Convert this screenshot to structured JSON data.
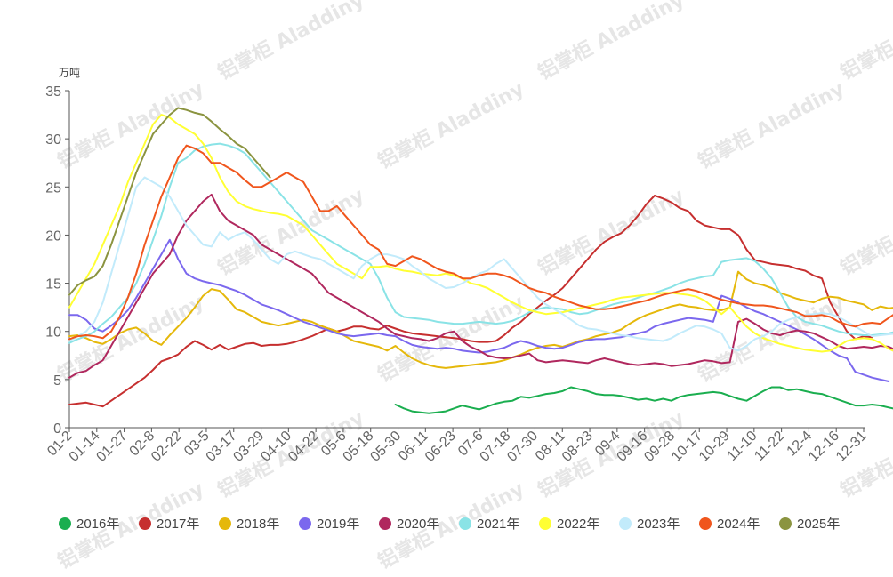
{
  "chart_data": {
    "type": "line",
    "ylabel": "万吨",
    "ylim": [
      0,
      35
    ],
    "yticks": [
      0,
      5,
      10,
      15,
      20,
      25,
      30,
      35
    ],
    "xtick_labels": [
      "01-2",
      "01-14",
      "01-27",
      "02-8",
      "02-22",
      "03-5",
      "03-17",
      "03-29",
      "04-10",
      "04-22",
      "05-6",
      "05-18",
      "05-30",
      "06-11",
      "06-23",
      "07-6",
      "07-18",
      "07-30",
      "08-11",
      "08-23",
      "09-4",
      "09-16",
      "09-28",
      "10-17",
      "10-29",
      "11-10",
      "11-22",
      "12-4",
      "12-16",
      "12-31"
    ],
    "x_count": 96,
    "legend_position": "bottom",
    "grid": false,
    "watermark": "铝掌柜 Aladdiny",
    "series": [
      {
        "name": "2016年",
        "color": "#1aae4f",
        "start": 39,
        "values": [
          2.4,
          2.0,
          1.7,
          1.6,
          1.5,
          1.6,
          1.7,
          2.0,
          2.3,
          2.1,
          1.9,
          2.2,
          2.5,
          2.7,
          2.8,
          3.2,
          3.1,
          3.3,
          3.5,
          3.6,
          3.8,
          4.2,
          4.0,
          3.8,
          3.5,
          3.4,
          3.4,
          3.3,
          3.1,
          2.9,
          3.0,
          2.8,
          3.0,
          2.8,
          3.2,
          3.4,
          3.5,
          3.6,
          3.7,
          3.6,
          3.3,
          3.0,
          2.8,
          3.3,
          3.8,
          4.2,
          4.2,
          3.9,
          4.0,
          3.8,
          3.6,
          3.5,
          3.2,
          2.9,
          2.6,
          2.3,
          2.3,
          2.4,
          2.3,
          2.1,
          1.9,
          1.8,
          1.7,
          1.6,
          1.5,
          1.3,
          1.2,
          1.1,
          1.1,
          1.3,
          1.6,
          1.8
        ]
      },
      {
        "name": "2017年",
        "color": "#c62f2f",
        "start": 0,
        "values": [
          2.4,
          2.5,
          2.6,
          2.4,
          2.2,
          2.8,
          3.4,
          4.0,
          4.6,
          5.2,
          6.0,
          6.9,
          7.2,
          7.6,
          8.4,
          9.0,
          8.6,
          8.1,
          8.6,
          8.1,
          8.4,
          8.7,
          8.8,
          8.5,
          8.6,
          8.6,
          8.7,
          8.9,
          9.2,
          9.5,
          9.9,
          10.3,
          10.0,
          10.2,
          10.5,
          10.5,
          10.3,
          10.2,
          10.6,
          10.3,
          10.0,
          9.8,
          9.7,
          9.6,
          9.5,
          9.4,
          9.3,
          9.2,
          9.0,
          8.9,
          8.9,
          9.0,
          9.6,
          10.4,
          11.0,
          11.8,
          12.5,
          13.2,
          13.8,
          14.5,
          15.5,
          16.5,
          17.5,
          18.5,
          19.3,
          19.8,
          20.2,
          21.0,
          22.0,
          23.2,
          24.1,
          23.8,
          23.4,
          22.8,
          22.5,
          21.5,
          21.0,
          20.8,
          20.6,
          20.6,
          20.0,
          18.5,
          17.4,
          17.2,
          17.0,
          16.9,
          16.8,
          16.5,
          16.3,
          15.8,
          15.5,
          13.0,
          11.5,
          10.0,
          9.2,
          9.5,
          9.4
        ]
      },
      {
        "name": "2018年",
        "color": "#e5b80b",
        "start": 0,
        "values": [
          9.5,
          9.6,
          9.3,
          8.9,
          8.7,
          9.2,
          9.8,
          10.2,
          10.4,
          9.8,
          9.0,
          8.6,
          9.6,
          10.5,
          11.4,
          12.5,
          13.7,
          14.4,
          14.2,
          13.3,
          12.3,
          12.0,
          11.5,
          11.0,
          10.8,
          10.6,
          10.8,
          11.0,
          11.2,
          11.0,
          10.6,
          10.3,
          10.0,
          9.5,
          9.0,
          8.8,
          8.6,
          8.4,
          8.0,
          8.5,
          7.8,
          7.2,
          6.8,
          6.5,
          6.3,
          6.2,
          6.3,
          6.4,
          6.5,
          6.6,
          6.7,
          6.8,
          7.0,
          7.3,
          7.6,
          8.0,
          8.3,
          8.5,
          8.6,
          8.4,
          8.7,
          9.0,
          9.2,
          9.5,
          9.7,
          9.9,
          10.2,
          10.8,
          11.3,
          11.7,
          12.0,
          12.3,
          12.6,
          12.8,
          12.6,
          12.5,
          12.3,
          12.2,
          12.2,
          12.5,
          16.2,
          15.4,
          15.0,
          14.8,
          14.5,
          14.0,
          13.7,
          13.4,
          13.2,
          13.0,
          13.4,
          13.6,
          13.5,
          13.2,
          13.0,
          12.8,
          12.2,
          12.6,
          12.4,
          12.5
        ]
      },
      {
        "name": "2019年",
        "color": "#7b68ee",
        "start": 0,
        "values": [
          11.7,
          11.7,
          11.2,
          10.3,
          10.0,
          10.6,
          11.3,
          12.2,
          13.5,
          15.0,
          16.5,
          18.0,
          19.5,
          17.5,
          16.0,
          15.5,
          15.2,
          15.0,
          14.8,
          14.5,
          14.2,
          13.8,
          13.3,
          12.8,
          12.5,
          12.2,
          11.8,
          11.4,
          11.0,
          10.7,
          10.4,
          10.1,
          9.8,
          9.6,
          9.5,
          9.6,
          9.7,
          9.8,
          9.6,
          9.5,
          9.0,
          8.6,
          8.4,
          8.3,
          8.2,
          8.3,
          8.2,
          8.0,
          7.9,
          7.8,
          7.9,
          8.1,
          8.3,
          8.7,
          9.0,
          8.8,
          8.5,
          8.3,
          8.2,
          8.3,
          8.6,
          8.9,
          9.1,
          9.2,
          9.2,
          9.3,
          9.4,
          9.6,
          9.8,
          10.0,
          10.5,
          10.8,
          11.0,
          11.2,
          11.4,
          11.3,
          11.2,
          11.0,
          13.7,
          13.4,
          13.0,
          12.5,
          12.1,
          11.8,
          11.4,
          11.0,
          10.6,
          10.2,
          9.7,
          9.2,
          8.6,
          8.0,
          7.5,
          7.2,
          5.8,
          5.5,
          5.2,
          5.0,
          4.8
        ]
      },
      {
        "name": "2020年",
        "color": "#b0285e",
        "start": 0,
        "values": [
          5.2,
          5.7,
          5.9,
          6.5,
          7.0,
          8.5,
          10.0,
          11.5,
          13.0,
          14.5,
          16.0,
          17.0,
          18.0,
          20.0,
          21.5,
          22.5,
          23.5,
          24.2,
          22.5,
          21.5,
          21.0,
          20.5,
          20.0,
          19.0,
          18.5,
          18.0,
          17.5,
          17.0,
          16.5,
          16.0,
          15.0,
          14.0,
          13.5,
          13.0,
          12.5,
          12.0,
          11.5,
          11.0,
          10.3,
          9.7,
          9.5,
          9.3,
          9.2,
          9.0,
          9.3,
          9.8,
          10.0,
          9.0,
          8.4,
          8.0,
          7.5,
          7.3,
          7.2,
          7.3,
          7.5,
          7.7,
          7.0,
          6.8,
          6.9,
          7.0,
          6.9,
          6.8,
          6.7,
          7.0,
          7.2,
          7.0,
          6.8,
          6.6,
          6.5,
          6.6,
          6.7,
          6.6,
          6.4,
          6.5,
          6.6,
          6.8,
          7.0,
          6.9,
          6.7,
          6.8,
          11.0,
          11.3,
          10.8,
          10.2,
          9.8,
          9.6,
          9.9,
          10.1,
          10.0,
          9.8,
          9.4,
          9.0,
          8.5,
          8.2,
          8.3,
          8.4,
          8.3,
          8.5,
          8.4,
          8.0,
          7.9,
          7.8
        ]
      },
      {
        "name": "2021年",
        "color": "#8ae3e6",
        "start": 0,
        "values": [
          8.8,
          9.2,
          9.5,
          10.0,
          10.8,
          11.5,
          12.5,
          13.5,
          15.0,
          17.0,
          19.5,
          22.0,
          25.0,
          27.5,
          28.0,
          28.8,
          29.2,
          29.4,
          29.5,
          29.3,
          29.0,
          28.5,
          27.5,
          26.5,
          25.5,
          24.5,
          23.5,
          22.5,
          21.5,
          20.5,
          20.0,
          19.5,
          19.0,
          18.5,
          18.0,
          17.5,
          17.0,
          15.5,
          13.5,
          12.0,
          11.5,
          11.4,
          11.3,
          11.2,
          11.0,
          10.9,
          10.8,
          10.8,
          10.9,
          11.0,
          10.9,
          10.8,
          10.9,
          11.1,
          11.5,
          12.0,
          12.3,
          12.5,
          12.4,
          12.3,
          12.0,
          11.8,
          11.9,
          12.2,
          12.5,
          12.8,
          13.0,
          13.2,
          13.5,
          13.8,
          14.0,
          14.3,
          14.6,
          15.0,
          15.3,
          15.5,
          15.7,
          15.8,
          17.2,
          17.4,
          17.5,
          17.6,
          17.3,
          16.5,
          15.5,
          14.0,
          12.5,
          11.5,
          11.0,
          10.8,
          10.6,
          10.3,
          10.0,
          9.8,
          9.7,
          9.6,
          9.6,
          9.7,
          9.8,
          10.0
        ]
      },
      {
        "name": "2022年",
        "color": "#ffff33",
        "start": 0,
        "values": [
          12.5,
          14.0,
          15.5,
          17.0,
          19.0,
          21.0,
          23.0,
          25.5,
          27.5,
          29.5,
          31.5,
          32.5,
          32.2,
          31.5,
          31.0,
          30.5,
          29.5,
          28.0,
          26.0,
          24.5,
          23.5,
          23.0,
          22.7,
          22.5,
          22.3,
          22.2,
          22.0,
          21.5,
          21.0,
          20.0,
          19.0,
          18.0,
          17.0,
          16.5,
          16.0,
          15.5,
          16.7,
          16.7,
          16.8,
          16.5,
          16.3,
          16.2,
          16.0,
          15.9,
          15.8,
          16.0,
          15.8,
          15.5,
          15.0,
          14.8,
          14.5,
          14.0,
          13.5,
          13.0,
          12.6,
          12.2,
          12.0,
          11.8,
          11.9,
          12.0,
          12.2,
          12.4,
          12.6,
          12.8,
          13.0,
          13.3,
          13.5,
          13.6,
          13.7,
          13.8,
          13.9,
          14.0,
          14.0,
          13.9,
          13.8,
          13.6,
          13.2,
          12.5,
          11.8,
          12.5,
          11.5,
          10.5,
          9.8,
          9.3,
          9.0,
          8.7,
          8.5,
          8.3,
          8.1,
          8.0,
          7.9,
          8.0,
          8.5,
          9.0,
          9.2,
          9.3,
          9.2,
          8.8,
          8.2,
          7.8,
          7.9,
          8.0
        ]
      },
      {
        "name": "2023年",
        "color": "#c2ebfb",
        "start": 0,
        "values": [
          9.0,
          9.5,
          10.0,
          11.0,
          13.0,
          16.0,
          19.0,
          22.0,
          25.0,
          26.0,
          25.5,
          25.0,
          24.0,
          22.5,
          21.0,
          20.0,
          19.0,
          18.8,
          20.3,
          19.5,
          20.0,
          20.3,
          19.5,
          18.5,
          17.5,
          17.0,
          18.0,
          18.3,
          18.0,
          17.7,
          17.5,
          17.0,
          16.5,
          16.0,
          15.5,
          16.8,
          17.5,
          18.0,
          18.0,
          17.8,
          17.5,
          16.8,
          16.2,
          15.5,
          15.0,
          14.5,
          14.6,
          15.0,
          15.5,
          16.0,
          16.3,
          17.0,
          17.5,
          16.5,
          15.5,
          14.5,
          13.5,
          12.8,
          12.3,
          11.8,
          11.2,
          10.6,
          10.3,
          10.2,
          10.0,
          9.8,
          9.6,
          9.5,
          9.3,
          9.2,
          9.1,
          9.0,
          9.3,
          9.8,
          10.2,
          10.6,
          10.5,
          10.2,
          9.8,
          8.3,
          8.0,
          8.5,
          9.2,
          9.5,
          10.0,
          10.8,
          11.2,
          11.5,
          11.7,
          11.8,
          11.9,
          11.8,
          11.5,
          11.0,
          10.5,
          10.0,
          9.5,
          9.6,
          9.7,
          9.8,
          9.9,
          10.0
        ]
      },
      {
        "name": "2024年",
        "color": "#f0561d",
        "start": 0,
        "values": [
          9.2,
          9.5,
          9.6,
          9.5,
          9.3,
          10.0,
          11.5,
          13.5,
          16.0,
          19.0,
          21.5,
          24.0,
          26.0,
          28.0,
          29.3,
          29.0,
          28.5,
          27.5,
          27.5,
          27.0,
          26.5,
          25.7,
          25.0,
          25.0,
          25.5,
          26.0,
          26.5,
          26.0,
          25.5,
          24.0,
          22.5,
          22.5,
          23.0,
          22.0,
          21.0,
          20.0,
          19.0,
          18.5,
          17.0,
          16.8,
          17.3,
          17.8,
          17.5,
          17.0,
          16.5,
          16.2,
          16.0,
          15.5,
          15.5,
          15.8,
          16.0,
          16.0,
          15.8,
          15.5,
          15.0,
          14.5,
          14.2,
          14.0,
          13.6,
          13.3,
          13.0,
          12.7,
          12.5,
          12.3,
          12.3,
          12.4,
          12.6,
          12.8,
          13.0,
          13.2,
          13.5,
          13.8,
          14.0,
          14.2,
          14.4,
          14.2,
          13.9,
          13.6,
          13.3,
          13.1,
          12.9,
          12.8,
          12.7,
          12.7,
          12.6,
          12.4,
          12.2,
          12.0,
          11.6,
          11.6,
          11.7,
          11.5,
          11.0,
          10.7,
          10.5,
          10.8,
          10.9,
          10.8,
          11.4,
          12.0,
          12.6,
          13.2
        ]
      },
      {
        "name": "2025年",
        "color": "#8b9440",
        "start": 0,
        "values": [
          13.8,
          14.8,
          15.3,
          15.7,
          16.8,
          19.0,
          21.5,
          24.0,
          26.5,
          28.5,
          30.5,
          31.5,
          32.5,
          33.2,
          33.0,
          32.7,
          32.5,
          31.8,
          31.0,
          30.3,
          29.5,
          29.0,
          28.0,
          27.0,
          26.0
        ]
      }
    ]
  }
}
